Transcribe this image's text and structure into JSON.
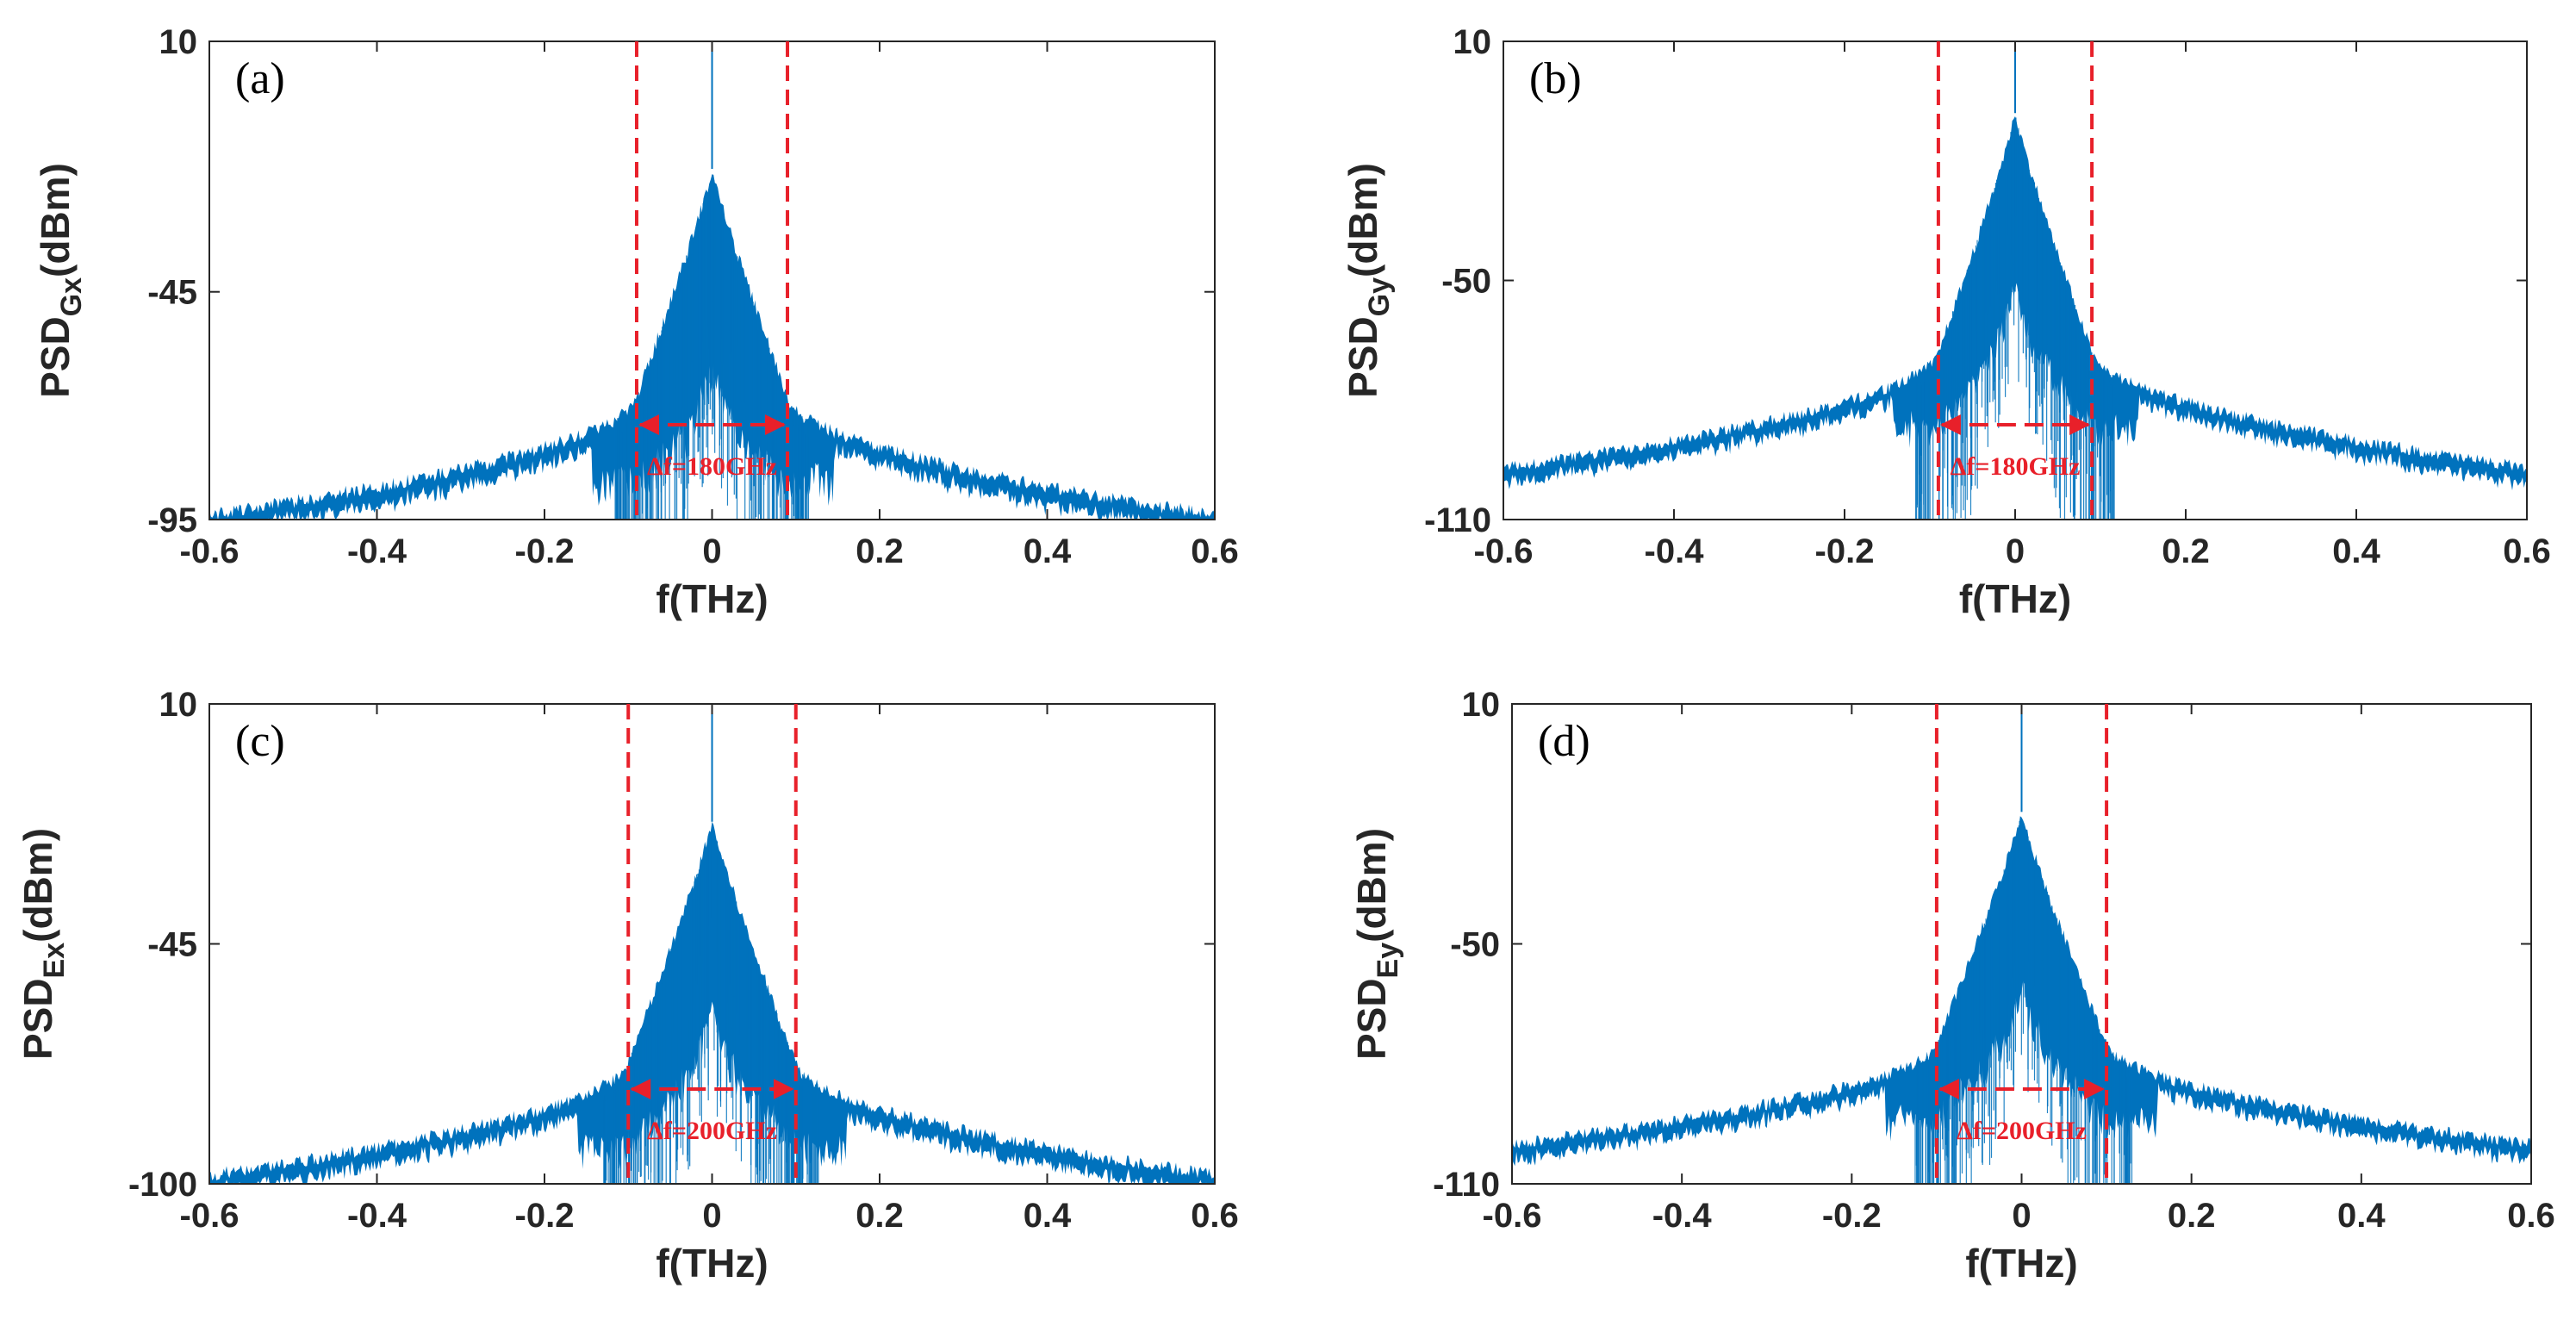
{
  "figure": {
    "colors": {
      "spectrum": "#0072bd",
      "marker": "#e8202a",
      "axis": "#262626"
    },
    "chart_data": [
      {
        "type": "area",
        "panel_label": "(a)",
        "xlabel": "f(THz)",
        "ylabel_main": "PSD",
        "ylabel_sub": "Gx",
        "ylabel_unit": "(dBm)",
        "xlim": [
          -0.6,
          0.6
        ],
        "ylim": [
          -95,
          10
        ],
        "x_ticks": [
          -0.6,
          -0.4,
          -0.2,
          0,
          0.2,
          0.4,
          0.6
        ],
        "x_tick_labels": [
          "-0.6",
          "-0.4",
          "-0.2",
          "0",
          "0.2",
          "0.4",
          "0.6"
        ],
        "y_ticks": [
          -95,
          -45,
          10
        ],
        "y_tick_labels": [
          "-95",
          "-45",
          "10"
        ],
        "bandwidth_markers_thz": [
          -0.09,
          0.09
        ],
        "bandwidth_label": "Δf=180GHz",
        "spectrum": {
          "center_peak_dbm": 10,
          "envelope_peak_dbm": -18,
          "envelope_at_markers_dbm": -68,
          "edge_dbm": -94
        }
      },
      {
        "type": "area",
        "panel_label": "(b)",
        "xlabel": "f(THz)",
        "ylabel_main": "PSD",
        "ylabel_sub": "Gy",
        "ylabel_unit": "(dBm)",
        "xlim": [
          -0.6,
          0.6
        ],
        "ylim": [
          -110,
          10
        ],
        "x_ticks": [
          -0.6,
          -0.4,
          -0.2,
          0,
          0.2,
          0.4,
          0.6
        ],
        "x_tick_labels": [
          "-0.6",
          "-0.4",
          "-0.2",
          "0",
          "0.2",
          "0.4",
          "0.6"
        ],
        "y_ticks": [
          -110,
          -50,
          10
        ],
        "y_tick_labels": [
          "-110",
          "-50",
          "10"
        ],
        "bandwidth_markers_thz": [
          -0.09,
          0.09
        ],
        "bandwidth_label": "Δf=180GHz",
        "spectrum": {
          "center_peak_dbm": 10,
          "envelope_peak_dbm": -8,
          "envelope_at_markers_dbm": -68,
          "edge_dbm": -97
        }
      },
      {
        "type": "area",
        "panel_label": "(c)",
        "xlabel": "f(THz)",
        "ylabel_main": "PSD",
        "ylabel_sub": "Ex",
        "ylabel_unit": "(dBm)",
        "xlim": [
          -0.6,
          0.6
        ],
        "ylim": [
          -100,
          10
        ],
        "x_ticks": [
          -0.6,
          -0.4,
          -0.2,
          0,
          0.2,
          0.4,
          0.6
        ],
        "x_tick_labels": [
          "-0.6",
          "-0.4",
          "-0.2",
          "0",
          "0.2",
          "0.4",
          "0.6"
        ],
        "y_ticks": [
          -100,
          -45,
          10
        ],
        "y_tick_labels": [
          "-100",
          "-45",
          "10"
        ],
        "bandwidth_markers_thz": [
          -0.1,
          0.1
        ],
        "bandwidth_label": "Δf=200GHz",
        "spectrum": {
          "center_peak_dbm": 10,
          "envelope_peak_dbm": -17,
          "envelope_at_markers_dbm": -72,
          "edge_dbm": -98
        }
      },
      {
        "type": "area",
        "panel_label": "(d)",
        "xlabel": "f(THz)",
        "ylabel_main": "PSD",
        "ylabel_sub": "Ey",
        "ylabel_unit": "(dBm)",
        "xlim": [
          -0.6,
          0.6
        ],
        "ylim": [
          -110,
          10
        ],
        "x_ticks": [
          -0.6,
          -0.4,
          -0.2,
          0,
          0.2,
          0.4,
          0.6
        ],
        "x_tick_labels": [
          "-0.6",
          "-0.4",
          "-0.2",
          "0",
          "0.2",
          "0.4",
          "0.6"
        ],
        "y_ticks": [
          -110,
          -50,
          10
        ],
        "y_tick_labels": [
          "-110",
          "-50",
          "10"
        ],
        "bandwidth_markers_thz": [
          -0.1,
          0.1
        ],
        "bandwidth_label": "Δf=200GHz",
        "spectrum": {
          "center_peak_dbm": 10,
          "envelope_peak_dbm": -17,
          "envelope_at_markers_dbm": -75,
          "edge_dbm": -100
        }
      }
    ]
  }
}
